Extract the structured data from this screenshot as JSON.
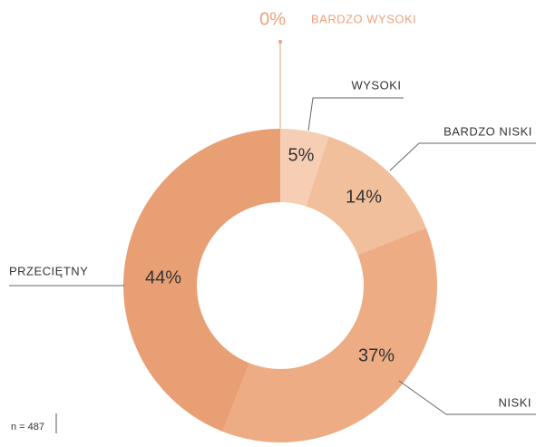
{
  "chart_data": {
    "type": "pie",
    "donut": true,
    "categories": [
      "BARDZO WYSOKI",
      "WYSOKI",
      "BARDZO NISKI",
      "NISKI",
      "PRZECIĘTNY"
    ],
    "values": [
      0,
      5,
      14,
      37,
      44
    ],
    "value_labels": [
      "0%",
      "5%",
      "14%",
      "37%",
      "44%"
    ],
    "colors": [
      "#eea07a",
      "#f6ceb3",
      "#f2bf9c",
      "#eeac84",
      "#e99f74"
    ],
    "annotation": "n = 487"
  }
}
